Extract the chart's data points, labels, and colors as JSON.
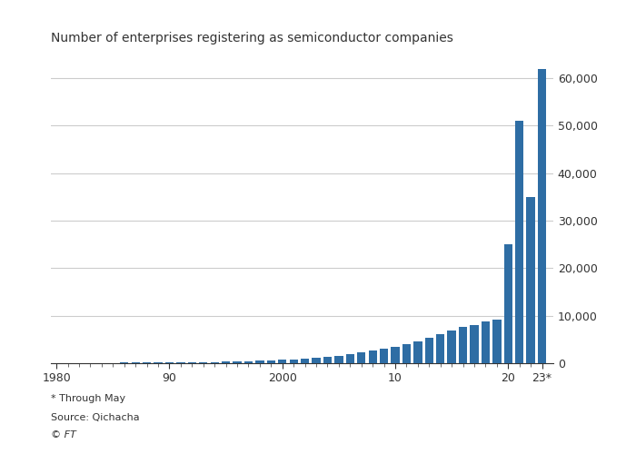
{
  "title": "Number of enterprises registering as semiconductor companies",
  "footnote1": "* Through May",
  "footnote2": "Source: Qichacha",
  "footnote3": "© FT",
  "bar_color": "#2e6da4",
  "background_color": "#ffffff",
  "plot_background": "#ffffff",
  "text_color": "#333333",
  "grid_color": "#cccccc",
  "years": [
    1980,
    1981,
    1982,
    1983,
    1984,
    1985,
    1986,
    1987,
    1988,
    1989,
    1990,
    1991,
    1992,
    1993,
    1994,
    1995,
    1996,
    1997,
    1998,
    1999,
    2000,
    2001,
    2002,
    2003,
    2004,
    2005,
    2006,
    2007,
    2008,
    2009,
    2010,
    2011,
    2012,
    2013,
    2014,
    2015,
    2016,
    2017,
    2018,
    2019,
    2020,
    2021,
    2022,
    2023
  ],
  "values": [
    50,
    60,
    60,
    70,
    80,
    90,
    100,
    110,
    120,
    130,
    140,
    160,
    200,
    250,
    280,
    320,
    370,
    420,
    500,
    600,
    700,
    800,
    950,
    1100,
    1300,
    1600,
    1900,
    2300,
    2700,
    3000,
    3400,
    4000,
    4600,
    5300,
    6100,
    6900,
    7600,
    8100,
    8700,
    9200,
    25000,
    51000,
    35000,
    62000
  ],
  "ylim": [
    0,
    65000
  ],
  "yticks": [
    0,
    10000,
    20000,
    30000,
    40000,
    50000,
    60000
  ],
  "xtick_positions": [
    1980,
    1990,
    2000,
    2010,
    2020,
    2023
  ],
  "xtick_labels": [
    "1980",
    "90",
    "2000",
    "10",
    "20",
    "23*"
  ]
}
